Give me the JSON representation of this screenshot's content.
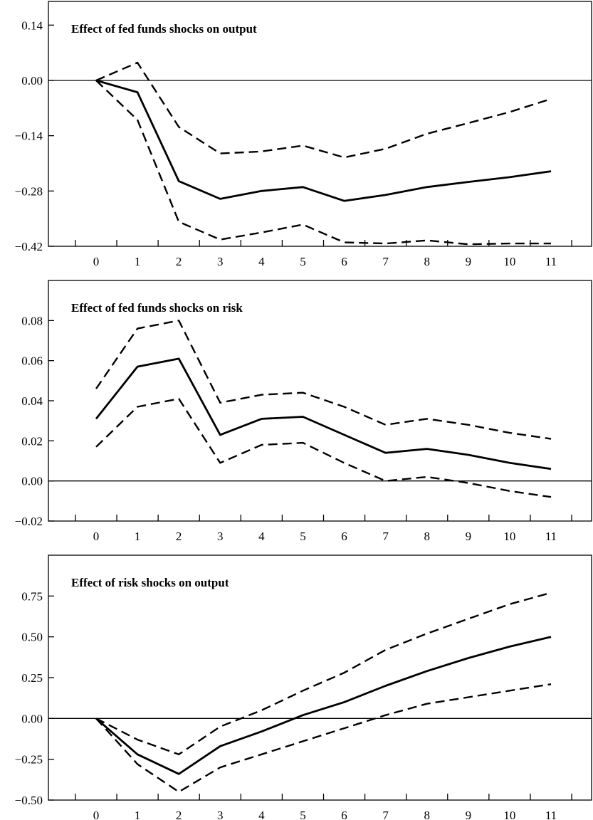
{
  "chart_data": [
    {
      "type": "line",
      "title": "Effect of fed funds shocks on output",
      "x": [
        0,
        1,
        2,
        3,
        4,
        5,
        6,
        7,
        8,
        9,
        10,
        11
      ],
      "ylim": [
        -0.42,
        0.2
      ],
      "yticks": [
        0.14,
        0.0,
        -0.14,
        -0.28,
        -0.42
      ],
      "ytick_labels": [
        "0.14",
        "0.00",
        "−0.14",
        "−0.28",
        "−0.42"
      ],
      "xtick_labels": [
        "0",
        "1",
        "2",
        "3",
        "4",
        "5",
        "6",
        "7",
        "8",
        "9",
        "10",
        "11"
      ],
      "zero_line": true,
      "series": [
        {
          "style": "solid",
          "values": [
            0.0,
            -0.03,
            -0.255,
            -0.3,
            -0.28,
            -0.27,
            -0.305,
            -0.29,
            -0.27,
            -0.257,
            -0.245,
            -0.23
          ]
        },
        {
          "style": "dashed",
          "values": [
            0.0,
            0.045,
            -0.118,
            -0.185,
            -0.18,
            -0.165,
            -0.195,
            -0.173,
            -0.135,
            -0.108,
            -0.08,
            -0.047
          ]
        },
        {
          "style": "dashed",
          "values": [
            0.0,
            -0.1,
            -0.358,
            -0.403,
            -0.385,
            -0.365,
            -0.41,
            -0.413,
            -0.405,
            -0.415,
            -0.413,
            -0.413
          ]
        }
      ]
    },
    {
      "type": "line",
      "title": "Effect of fed funds shocks on risk",
      "x": [
        0,
        1,
        2,
        3,
        4,
        5,
        6,
        7,
        8,
        9,
        10,
        11
      ],
      "ylim": [
        -0.02,
        0.1
      ],
      "yticks": [
        0.08,
        0.06,
        0.04,
        0.02,
        0.0,
        -0.02
      ],
      "ytick_labels": [
        "0.08",
        "0.06",
        "0.04",
        "0.02",
        "0.00",
        "−0.02"
      ],
      "xtick_labels": [
        "0",
        "1",
        "2",
        "3",
        "4",
        "5",
        "6",
        "7",
        "8",
        "9",
        "10",
        "11"
      ],
      "zero_line": true,
      "series": [
        {
          "style": "solid",
          "values": [
            0.031,
            0.057,
            0.061,
            0.023,
            0.031,
            0.032,
            0.023,
            0.014,
            0.016,
            0.013,
            0.009,
            0.006
          ]
        },
        {
          "style": "dashed",
          "values": [
            0.046,
            0.076,
            0.08,
            0.039,
            0.043,
            0.044,
            0.037,
            0.028,
            0.031,
            0.028,
            0.024,
            0.021
          ]
        },
        {
          "style": "dashed",
          "values": [
            0.017,
            0.037,
            0.041,
            0.009,
            0.018,
            0.019,
            0.009,
            0.0,
            0.002,
            -0.001,
            -0.005,
            -0.008
          ]
        }
      ]
    },
    {
      "type": "line",
      "title": "Effect of risk shocks on output",
      "x": [
        0,
        1,
        2,
        3,
        4,
        5,
        6,
        7,
        8,
        9,
        10,
        11
      ],
      "ylim": [
        -0.5,
        1.0
      ],
      "yticks": [
        0.75,
        0.5,
        0.25,
        0.0,
        -0.25,
        -0.5
      ],
      "ytick_labels": [
        "0.75",
        "0.50",
        "0.25",
        "0.00",
        "−0.25",
        "−0.50"
      ],
      "xtick_labels": [
        "0",
        "1",
        "2",
        "3",
        "4",
        "5",
        "6",
        "7",
        "8",
        "9",
        "10",
        "11"
      ],
      "zero_line": true,
      "series": [
        {
          "style": "solid",
          "values": [
            0.0,
            -0.22,
            -0.34,
            -0.17,
            -0.08,
            0.02,
            0.1,
            0.2,
            0.29,
            0.37,
            0.44,
            0.5
          ]
        },
        {
          "style": "dashed",
          "values": [
            0.0,
            -0.13,
            -0.22,
            -0.05,
            0.05,
            0.17,
            0.28,
            0.42,
            0.52,
            0.61,
            0.7,
            0.77
          ]
        },
        {
          "style": "dashed",
          "values": [
            0.0,
            -0.28,
            -0.45,
            -0.3,
            -0.22,
            -0.14,
            -0.06,
            0.02,
            0.09,
            0.13,
            0.17,
            0.21
          ]
        }
      ]
    }
  ]
}
